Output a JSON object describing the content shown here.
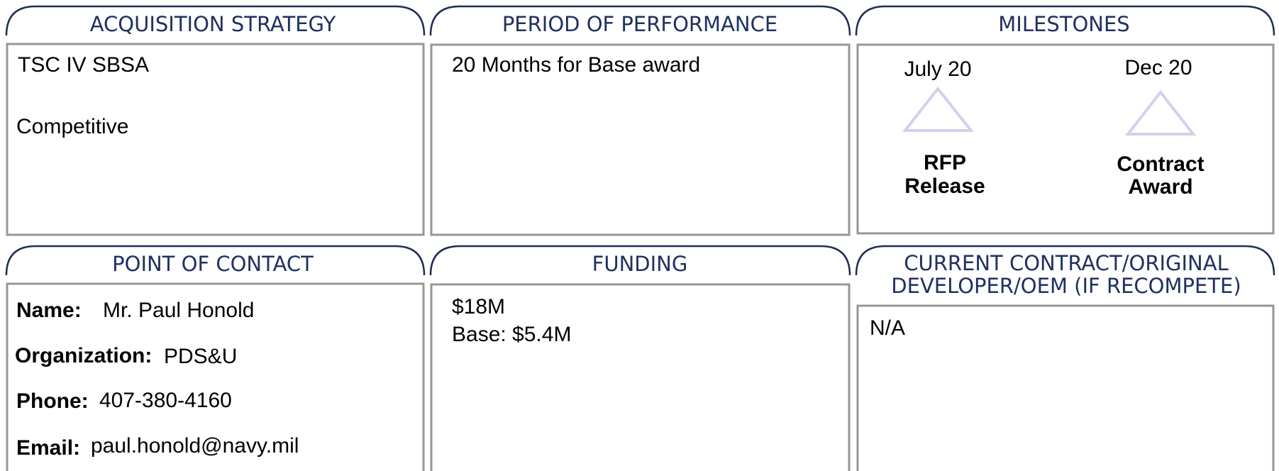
{
  "acquisition_strategy": {
    "title": "ACQUISITION STRATEGY",
    "lines": [
      "TSC IV SBSA",
      "Competitive"
    ]
  },
  "period_of_performance": {
    "title": "PERIOD OF PERFORMANCE",
    "text": "20 Months for Base award"
  },
  "milestones": {
    "title": "MILESTONES",
    "items": [
      {
        "date": "July 20",
        "label": [
          "RFP",
          "Release"
        ]
      },
      {
        "date": "Dec 20",
        "label": [
          "Contract",
          "Award"
        ]
      }
    ]
  },
  "point_of_contact": {
    "title": "POINT OF CONTACT",
    "fields": [
      {
        "label": "Name:",
        "value": "Mr. Paul Honold"
      },
      {
        "label": "Organization:",
        "value": "PDS&U"
      },
      {
        "label": "Phone:",
        "value": "407-380-4160"
      },
      {
        "label": "Email:",
        "value": "paul.honold@navy.mil"
      }
    ]
  },
  "funding": {
    "title": "FUNDING",
    "lines": [
      "$18M",
      "Base: $5.4M"
    ]
  },
  "current_contract": {
    "title": [
      "CURRENT CONTRACT/ORIGINAL",
      "DEVELOPER/OEM (IF RECOMPETE)"
    ],
    "text": "N/A"
  }
}
